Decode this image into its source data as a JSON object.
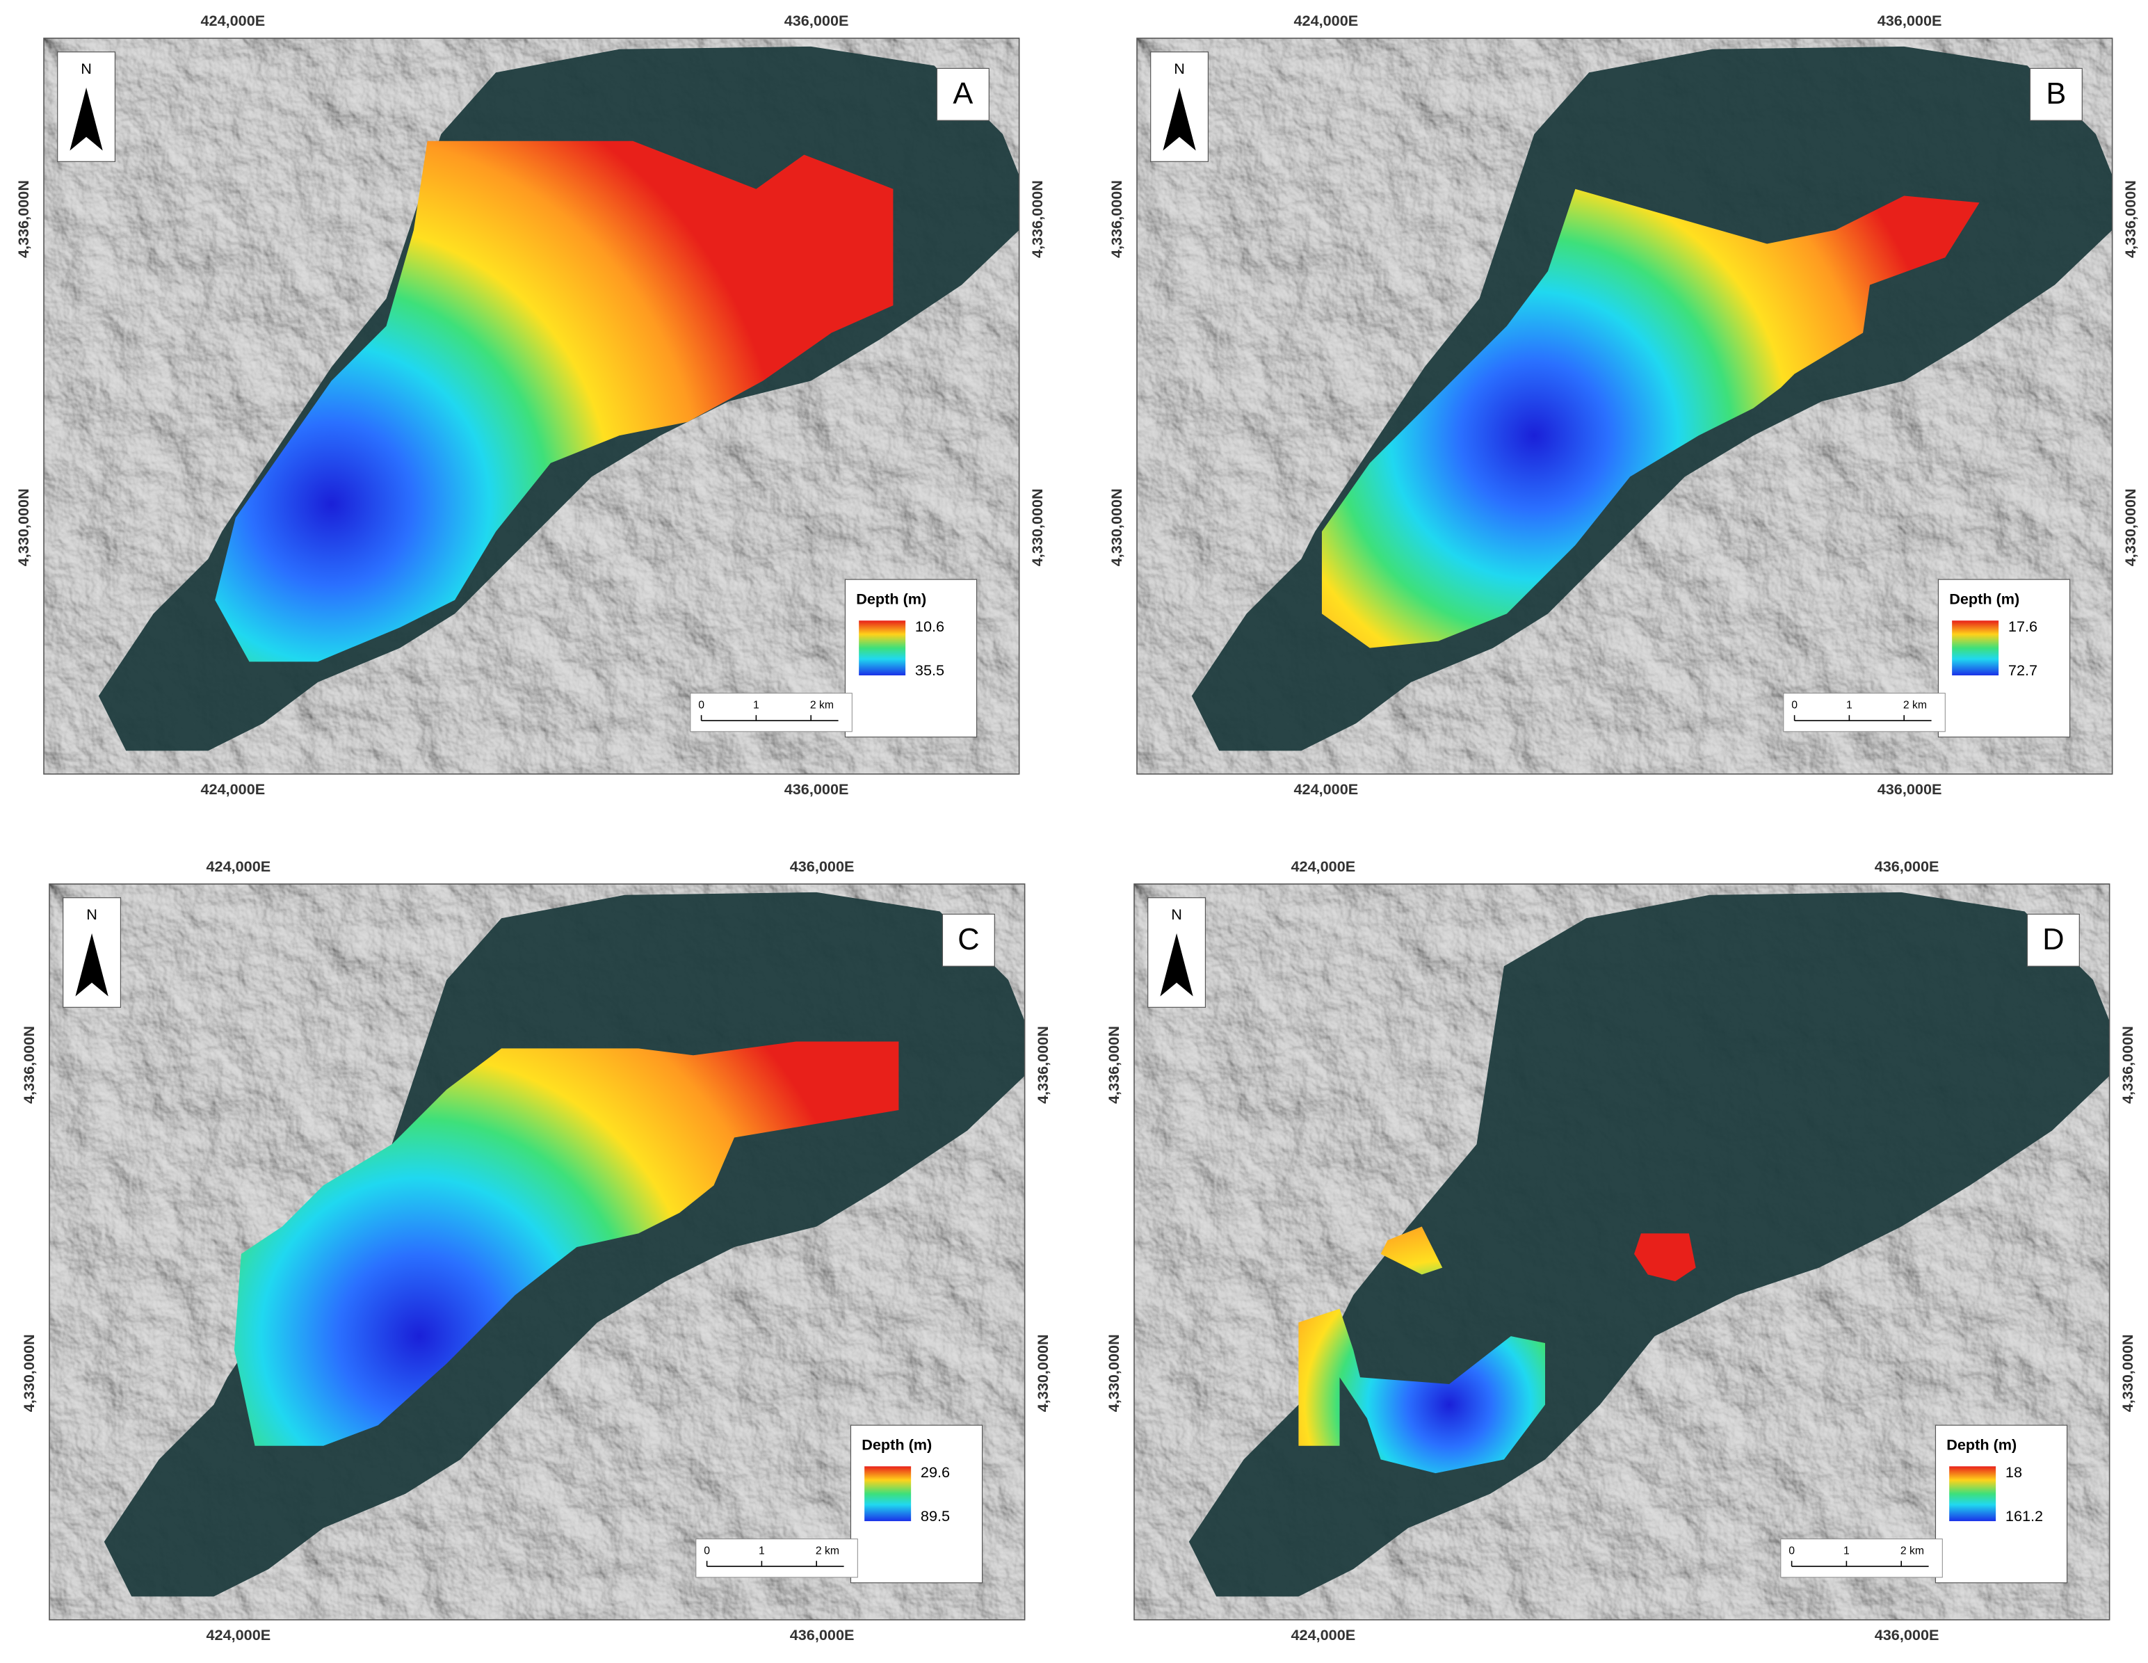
{
  "coordinates": {
    "x_labels": [
      "424,000E",
      "436,000E"
    ],
    "y_labels": [
      "4,336,000N",
      "4,330,000N"
    ]
  },
  "north_label": "N",
  "scale_bar": {
    "labels": [
      "0",
      "1",
      "2 km"
    ]
  },
  "legend_title": "Depth (m)",
  "panels": [
    {
      "label": "A",
      "legend_max": 10.6,
      "legend_min": 35.5
    },
    {
      "label": "B",
      "legend_max": 17.6,
      "legend_min": 72.7
    },
    {
      "label": "C",
      "legend_max": 29.6,
      "legend_min": 89.5
    },
    {
      "label": "D",
      "legend_max": 18,
      "legend_min": 161.2
    }
  ]
}
